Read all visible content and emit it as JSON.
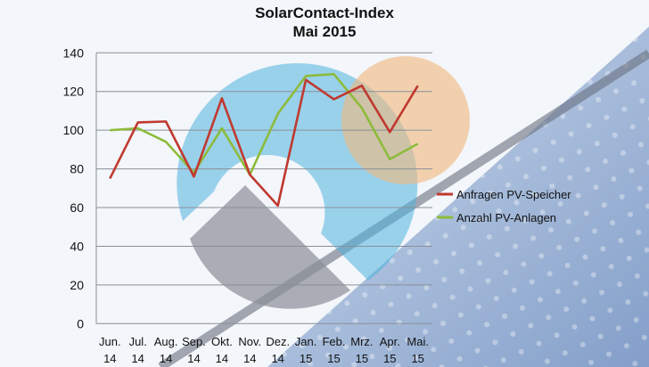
{
  "chart_data": {
    "type": "line",
    "title": "SolarContact-Index",
    "subtitle": "Mai 2015",
    "xlabel": "",
    "ylabel": "",
    "ylim": [
      0,
      140
    ],
    "yticks": [
      0,
      20,
      40,
      60,
      80,
      100,
      120,
      140
    ],
    "grid": true,
    "legend_position": "right",
    "categories": [
      [
        "Jun.",
        "14"
      ],
      [
        "Jul.",
        "14"
      ],
      [
        "Aug.",
        "14"
      ],
      [
        "Sep.",
        "14"
      ],
      [
        "Okt.",
        "14"
      ],
      [
        "Nov.",
        "14"
      ],
      [
        "Dez.",
        "14"
      ],
      [
        "Jan.",
        "15"
      ],
      [
        "Feb.",
        "15"
      ],
      [
        "Mrz.",
        "15"
      ],
      [
        "Apr.",
        "15"
      ],
      [
        "Mai.",
        "15"
      ]
    ],
    "series": [
      {
        "name": "Anfragen PV-Speicher",
        "color": "#c0392f",
        "values": [
          75,
          104,
          104.5,
          76,
          116.5,
          77,
          61,
          126,
          116,
          123,
          99,
          123
        ]
      },
      {
        "name": "Anzahl PV-Anlagen",
        "color": "#8dbb3c",
        "values": [
          100,
          101,
          94,
          78,
          101,
          77,
          108.5,
          128,
          129,
          111.5,
          85,
          93
        ]
      }
    ]
  }
}
